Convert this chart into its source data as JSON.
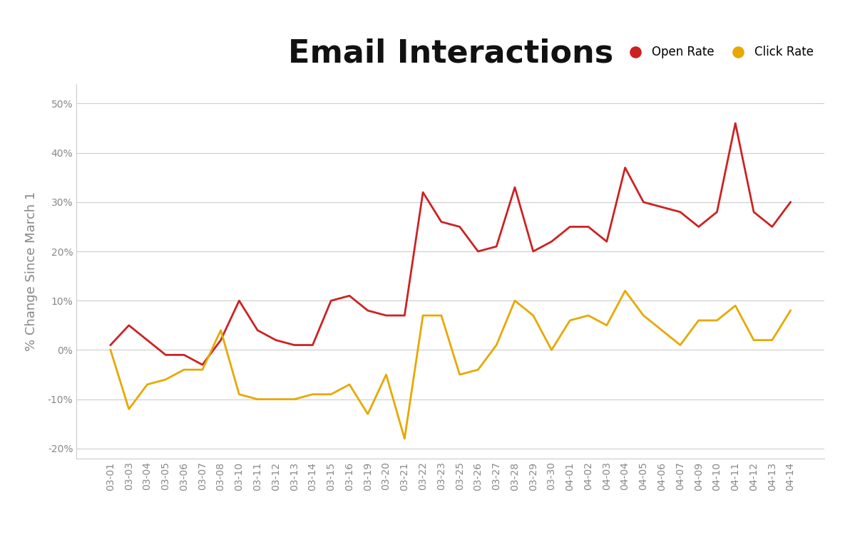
{
  "title": "Email Interactions",
  "ylabel": "% Change Since March 1",
  "background_color": "#ffffff",
  "plot_bg_color": "#ffffff",
  "grid_color": "#cccccc",
  "title_fontsize": 32,
  "title_fontweight": "bold",
  "ylabel_fontsize": 13,
  "ylabel_color": "#888888",
  "tick_color": "#888888",
  "tick_fontsize": 10,
  "ylim": [
    -0.22,
    0.54
  ],
  "yticks": [
    -0.2,
    -0.1,
    0.0,
    0.1,
    0.2,
    0.3,
    0.4,
    0.5
  ],
  "open_rate_color": "#cc2222",
  "click_rate_color": "#e8a800",
  "legend_open_color": "#cc2222",
  "legend_click_color": "#e8a800",
  "dates": [
    "03-01",
    "03-03",
    "03-04",
    "03-05",
    "03-06",
    "03-07",
    "03-08",
    "03-10",
    "03-11",
    "03-12",
    "03-13",
    "03-14",
    "03-15",
    "03-16",
    "03-19",
    "03-20",
    "03-21",
    "03-22",
    "03-23",
    "03-25",
    "03-26",
    "03-27",
    "03-28",
    "03-29",
    "03-30",
    "04-01",
    "04-02",
    "04-03",
    "04-04",
    "04-05",
    "04-06",
    "04-07",
    "04-09",
    "04-10",
    "04-11",
    "04-12",
    "04-13",
    "04-14"
  ],
  "open_rate": [
    0.01,
    0.05,
    0.02,
    -0.01,
    -0.01,
    -0.03,
    0.02,
    0.1,
    0.04,
    0.02,
    0.01,
    0.01,
    0.1,
    0.11,
    0.08,
    0.07,
    0.07,
    0.32,
    0.26,
    0.25,
    0.2,
    0.21,
    0.33,
    0.2,
    0.22,
    0.25,
    0.25,
    0.22,
    0.37,
    0.3,
    0.29,
    0.28,
    0.25,
    0.28,
    0.46,
    0.28,
    0.25,
    0.3
  ],
  "click_rate": [
    0.0,
    -0.12,
    -0.07,
    -0.06,
    -0.04,
    -0.04,
    0.04,
    -0.09,
    -0.1,
    -0.1,
    -0.1,
    -0.09,
    -0.09,
    -0.07,
    -0.13,
    -0.05,
    -0.18,
    0.07,
    0.07,
    -0.05,
    -0.04,
    0.01,
    0.1,
    0.07,
    0.0,
    0.06,
    0.07,
    0.05,
    0.12,
    0.07,
    0.04,
    0.01,
    0.06,
    0.06,
    0.09,
    0.02,
    0.02,
    0.08
  ]
}
